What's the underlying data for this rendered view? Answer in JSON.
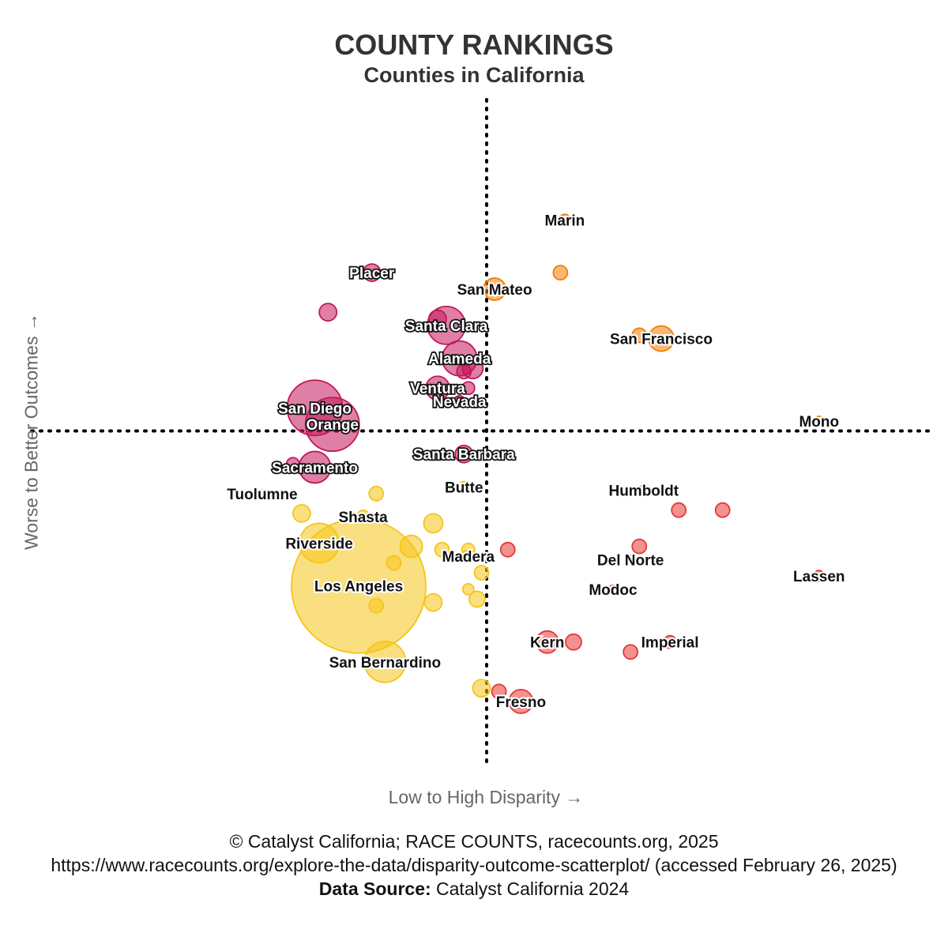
{
  "chart_data": {
    "type": "scatter",
    "title": "COUNTY RANKINGS",
    "subtitle": "Counties in California",
    "xlabel": "Low to High Disparity →",
    "ylabel": "Worse to Better Outcomes →",
    "xlim": [
      0,
      100
    ],
    "ylim": [
      0,
      100
    ],
    "divider_x": 50,
    "divider_y": 50,
    "colors": {
      "low_disparity_better": "#c2185b",
      "high_disparity_better": "#f57c00",
      "low_disparity_worse": "#f5c518",
      "high_disparity_worse": "#e53935"
    },
    "points": [
      {
        "name": "Marin",
        "x": 59.0,
        "y": 82.0,
        "size": 14,
        "label": true,
        "group": "high_disparity_better"
      },
      {
        "name": "",
        "x": 58.5,
        "y": 74.0,
        "size": 18,
        "label": false,
        "group": "high_disparity_better"
      },
      {
        "name": "San Mateo",
        "x": 51.0,
        "y": 71.5,
        "size": 28,
        "label": true,
        "group": "high_disparity_better"
      },
      {
        "name": "",
        "x": 67.5,
        "y": 64.5,
        "size": 18,
        "label": false,
        "group": "high_disparity_better"
      },
      {
        "name": "San Francisco",
        "x": 70.0,
        "y": 64.0,
        "size": 32,
        "label": true,
        "group": "high_disparity_better"
      },
      {
        "name": "Mono",
        "x": 88.0,
        "y": 51.5,
        "size": 12,
        "label": true,
        "group": "high_disparity_better"
      },
      {
        "name": "Placer",
        "x": 37.0,
        "y": 74.0,
        "size": 22,
        "label": true,
        "group": "low_disparity_better"
      },
      {
        "name": "",
        "x": 32.0,
        "y": 68.0,
        "size": 22,
        "label": false,
        "group": "low_disparity_better"
      },
      {
        "name": "",
        "x": 44.5,
        "y": 67.0,
        "size": 22,
        "label": false,
        "group": "low_disparity_better"
      },
      {
        "name": "Santa Clara",
        "x": 45.5,
        "y": 66.0,
        "size": 48,
        "label": true,
        "group": "low_disparity_better"
      },
      {
        "name": "Alameda",
        "x": 47.0,
        "y": 61.0,
        "size": 44,
        "label": true,
        "group": "low_disparity_better"
      },
      {
        "name": "",
        "x": 48.5,
        "y": 59.5,
        "size": 26,
        "label": false,
        "group": "low_disparity_better"
      },
      {
        "name": "",
        "x": 47.5,
        "y": 59.0,
        "size": 18,
        "label": false,
        "group": "low_disparity_better"
      },
      {
        "name": "Ventura",
        "x": 44.5,
        "y": 56.5,
        "size": 30,
        "label": true,
        "group": "low_disparity_better"
      },
      {
        "name": "",
        "x": 48.0,
        "y": 56.5,
        "size": 16,
        "label": false,
        "group": "low_disparity_better"
      },
      {
        "name": "San Diego",
        "x": 30.5,
        "y": 53.5,
        "size": 70,
        "label": true,
        "group": "low_disparity_better"
      },
      {
        "name": "Nevada",
        "x": 47.0,
        "y": 54.5,
        "size": 14,
        "label": true,
        "group": "low_disparity_better"
      },
      {
        "name": "Orange",
        "x": 32.5,
        "y": 51.0,
        "size": 68,
        "label": true,
        "group": "low_disparity_better"
      },
      {
        "name": "Santa Barbara",
        "x": 47.5,
        "y": 46.5,
        "size": 22,
        "label": true,
        "group": "low_disparity_better"
      },
      {
        "name": "",
        "x": 28.0,
        "y": 45.0,
        "size": 16,
        "label": false,
        "group": "low_disparity_better"
      },
      {
        "name": "Sacramento",
        "x": 30.5,
        "y": 44.5,
        "size": 40,
        "label": true,
        "group": "low_disparity_better"
      },
      {
        "name": "Tuolumne",
        "x": 24.5,
        "y": 40.5,
        "size": 10,
        "label": true,
        "group": "low_disparity_worse"
      },
      {
        "name": "",
        "x": 37.5,
        "y": 40.5,
        "size": 18,
        "label": false,
        "group": "low_disparity_worse"
      },
      {
        "name": "Butte",
        "x": 47.5,
        "y": 41.5,
        "size": 14,
        "label": true,
        "group": "low_disparity_worse"
      },
      {
        "name": "",
        "x": 29.0,
        "y": 37.5,
        "size": 22,
        "label": false,
        "group": "low_disparity_worse"
      },
      {
        "name": "Shasta",
        "x": 36.0,
        "y": 37.0,
        "size": 16,
        "label": true,
        "group": "low_disparity_worse"
      },
      {
        "name": "",
        "x": 44.0,
        "y": 36.0,
        "size": 24,
        "label": false,
        "group": "low_disparity_worse"
      },
      {
        "name": "Riverside",
        "x": 31.0,
        "y": 33.0,
        "size": 50,
        "label": true,
        "group": "low_disparity_worse"
      },
      {
        "name": "",
        "x": 41.5,
        "y": 32.5,
        "size": 28,
        "label": false,
        "group": "low_disparity_worse"
      },
      {
        "name": "",
        "x": 45.0,
        "y": 32.0,
        "size": 18,
        "label": false,
        "group": "low_disparity_worse"
      },
      {
        "name": "",
        "x": 48.0,
        "y": 32.0,
        "size": 16,
        "label": false,
        "group": "low_disparity_worse"
      },
      {
        "name": "",
        "x": 39.5,
        "y": 30.0,
        "size": 18,
        "label": false,
        "group": "low_disparity_worse"
      },
      {
        "name": "Madera",
        "x": 48.0,
        "y": 31.0,
        "size": 16,
        "label": true,
        "group": "low_disparity_worse"
      },
      {
        "name": "",
        "x": 49.5,
        "y": 28.5,
        "size": 18,
        "label": false,
        "group": "low_disparity_worse"
      },
      {
        "name": "Los Angeles",
        "x": 35.5,
        "y": 26.5,
        "size": 170,
        "label": true,
        "group": "low_disparity_worse"
      },
      {
        "name": "",
        "x": 48.0,
        "y": 26.0,
        "size": 14,
        "label": false,
        "group": "low_disparity_worse"
      },
      {
        "name": "",
        "x": 49.0,
        "y": 24.5,
        "size": 20,
        "label": false,
        "group": "low_disparity_worse"
      },
      {
        "name": "",
        "x": 44.0,
        "y": 24.0,
        "size": 22,
        "label": false,
        "group": "low_disparity_worse"
      },
      {
        "name": "",
        "x": 37.5,
        "y": 23.5,
        "size": 18,
        "label": false,
        "group": "low_disparity_worse"
      },
      {
        "name": "San Bernardino",
        "x": 38.5,
        "y": 15.0,
        "size": 52,
        "label": true,
        "group": "low_disparity_worse"
      },
      {
        "name": "",
        "x": 49.5,
        "y": 11.0,
        "size": 22,
        "label": false,
        "group": "low_disparity_worse"
      },
      {
        "name": "Humboldt",
        "x": 68.0,
        "y": 41.0,
        "size": 12,
        "label": true,
        "group": "high_disparity_worse"
      },
      {
        "name": "",
        "x": 72.0,
        "y": 38.0,
        "size": 18,
        "label": false,
        "group": "high_disparity_worse"
      },
      {
        "name": "",
        "x": 77.0,
        "y": 38.0,
        "size": 18,
        "label": false,
        "group": "high_disparity_worse"
      },
      {
        "name": "",
        "x": 52.5,
        "y": 32.0,
        "size": 18,
        "label": false,
        "group": "high_disparity_worse"
      },
      {
        "name": "",
        "x": 67.5,
        "y": 32.5,
        "size": 18,
        "label": false,
        "group": "high_disparity_worse"
      },
      {
        "name": "Del Norte",
        "x": 66.5,
        "y": 30.5,
        "size": 10,
        "label": true,
        "group": "high_disparity_worse"
      },
      {
        "name": "Lassen",
        "x": 88.0,
        "y": 28.0,
        "size": 14,
        "label": true,
        "group": "high_disparity_worse"
      },
      {
        "name": "Modoc",
        "x": 64.5,
        "y": 26.0,
        "size": 10,
        "label": true,
        "group": "high_disparity_worse"
      },
      {
        "name": "Kern",
        "x": 57.0,
        "y": 18.0,
        "size": 28,
        "label": true,
        "group": "high_disparity_worse"
      },
      {
        "name": "",
        "x": 60.0,
        "y": 18.0,
        "size": 20,
        "label": false,
        "group": "high_disparity_worse"
      },
      {
        "name": "Imperial",
        "x": 71.0,
        "y": 18.0,
        "size": 16,
        "label": true,
        "group": "high_disparity_worse"
      },
      {
        "name": "",
        "x": 66.5,
        "y": 16.5,
        "size": 18,
        "label": false,
        "group": "high_disparity_worse"
      },
      {
        "name": "",
        "x": 51.5,
        "y": 10.5,
        "size": 18,
        "label": false,
        "group": "high_disparity_worse"
      },
      {
        "name": "Fresno",
        "x": 54.0,
        "y": 9.0,
        "size": 30,
        "label": true,
        "group": "high_disparity_worse"
      }
    ]
  },
  "footer": {
    "line1": "© Catalyst California; RACE COUNTS, racecounts.org, 2025",
    "line2": "https://www.racecounts.org/explore-the-data/disparity-outcome-scatterplot/ (accessed February 26, 2025)",
    "source_label": "Data Source:",
    "source_value": "Catalyst California 2024"
  }
}
